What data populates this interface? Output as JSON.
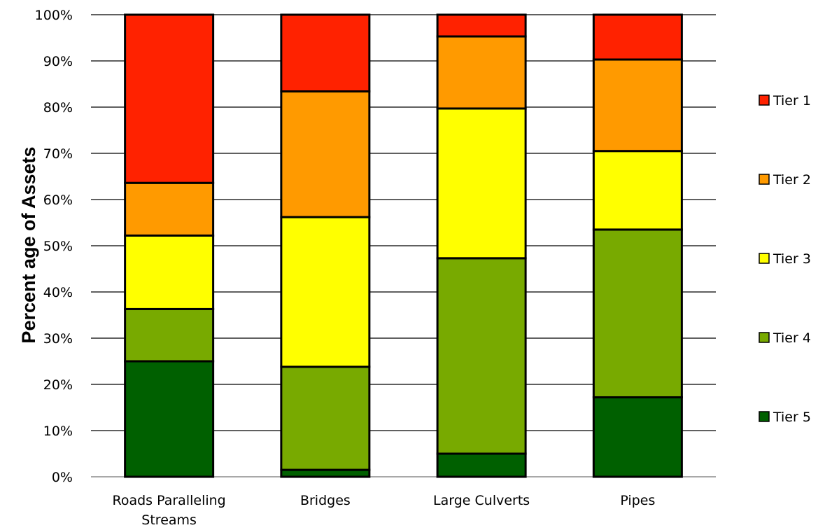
{
  "chart_data": {
    "type": "bar",
    "stacked": true,
    "categories": [
      "Roads Paralleling Streams",
      "Bridges",
      "Large Culverts",
      "Pipes"
    ],
    "category_lines": [
      [
        "Roads Paralleling",
        "Streams"
      ],
      [
        "Bridges"
      ],
      [
        "Large Culverts"
      ],
      [
        "Pipes"
      ]
    ],
    "series": [
      {
        "name": "Tier 5",
        "color": "#006000",
        "values": [
          25,
          1.5,
          5,
          17.2
        ]
      },
      {
        "name": "Tier 4",
        "color": "#78AA00",
        "values": [
          11.3,
          22.3,
          42.3,
          36.3
        ]
      },
      {
        "name": "Tier 3",
        "color": "#FFFF00",
        "values": [
          15.9,
          32.4,
          32.4,
          17
        ]
      },
      {
        "name": "Tier 2",
        "color": "#FF9A00",
        "values": [
          11.4,
          27.2,
          15.6,
          19.8
        ]
      },
      {
        "name": "Tier 1",
        "color": "#FF2200",
        "values": [
          36.4,
          16.6,
          4.7,
          9.7
        ]
      }
    ],
    "legend_order": [
      "Tier 1",
      "Tier 2",
      "Tier 3",
      "Tier 4",
      "Tier 5"
    ],
    "legend_labels": [
      "Tier 1",
      "Tier 2",
      "Tier 3",
      "Tier 4",
      "Tier 5"
    ],
    "yticks": [
      "0%",
      "10%",
      "20%",
      "30%",
      "40%",
      "50%",
      "60%",
      "70%",
      "80%",
      "90%",
      "100%"
    ],
    "ylim": [
      0,
      100
    ],
    "ylabel": "Percent age of Assets",
    "xlabel": "",
    "title": "",
    "grid": true,
    "legend_position": "right"
  }
}
